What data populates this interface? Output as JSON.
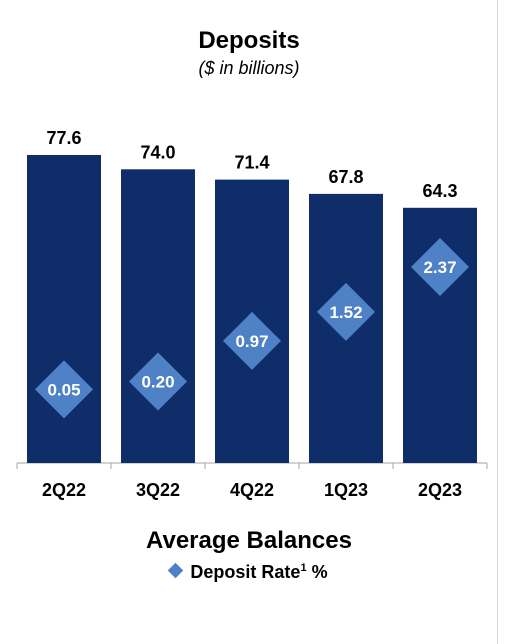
{
  "chart_data": {
    "type": "bar",
    "title": "Deposits",
    "subtitle": "($ in billions)",
    "categories": [
      "2Q22",
      "3Q22",
      "4Q22",
      "1Q23",
      "2Q23"
    ],
    "series": [
      {
        "name": "Average Balances",
        "type": "bar",
        "values": [
          77.6,
          74.0,
          71.4,
          67.8,
          64.3
        ],
        "labels": [
          "77.6",
          "74.0",
          "71.4",
          "67.8",
          "64.3"
        ]
      },
      {
        "name": "Deposit Rate",
        "type": "marker",
        "values": [
          0.05,
          0.2,
          0.97,
          1.52,
          2.37
        ],
        "labels": [
          "0.05",
          "0.20",
          "0.97",
          "1.52",
          "2.37"
        ]
      }
    ],
    "legend": {
      "bar_label": "Average Balances",
      "rate_label": "Deposit Rate",
      "superscript": "1",
      "unit": "%"
    },
    "colors": {
      "bar": "#0f2d69",
      "marker": "#4f81c7"
    },
    "grid": false,
    "legend_placement": "bottom"
  }
}
